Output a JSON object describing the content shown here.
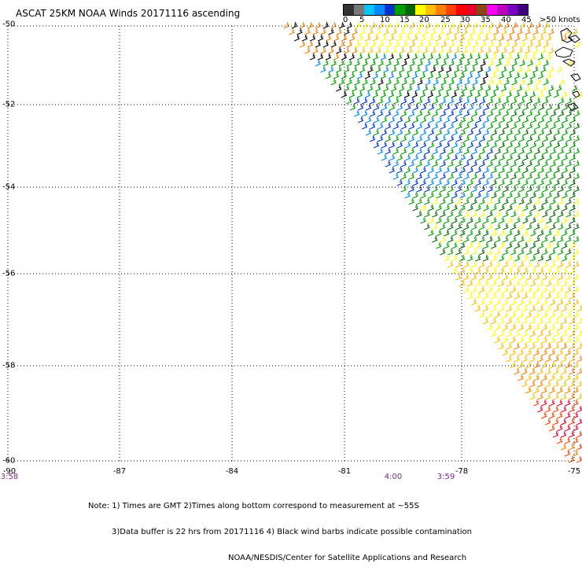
{
  "title": "ASCAT 25KM NOAA Winds 20171116 ascending",
  "legend": {
    "colors": [
      "#333333",
      "#777777",
      "#00c8ff",
      "#0088ff",
      "#0033cc",
      "#00a000",
      "#006600",
      "#ffff00",
      "#ffc000",
      "#ff8000",
      "#ff4000",
      "#ff0000",
      "#e8002a",
      "#8b4513",
      "#ff00ff",
      "#c000c0",
      "#7a00c8",
      "#400080"
    ],
    "labels": [
      "0",
      "5",
      "10",
      "15",
      "20",
      "25",
      "30",
      "35",
      "40",
      "45",
      ">50 knots"
    ]
  },
  "axes": {
    "lat_labels": [
      "-50",
      "-52",
      "-54",
      "-56",
      "-58",
      "-60"
    ],
    "lon_labels": [
      "-90",
      "-87",
      "-84",
      "-81",
      "-78",
      "-75"
    ]
  },
  "time_labels": [
    "3:58",
    "4:00",
    "3:59"
  ],
  "notes": [
    "Note: 1) Times are GMT 2)Times along bottom correspond to measurement at ~55S",
    "3)Data buffer is 22 hrs from 20171116 4) Black wind barbs indicate possible contamination",
    "NOAA/NESDIS/Center for Satellite Applications and Research"
  ]
}
